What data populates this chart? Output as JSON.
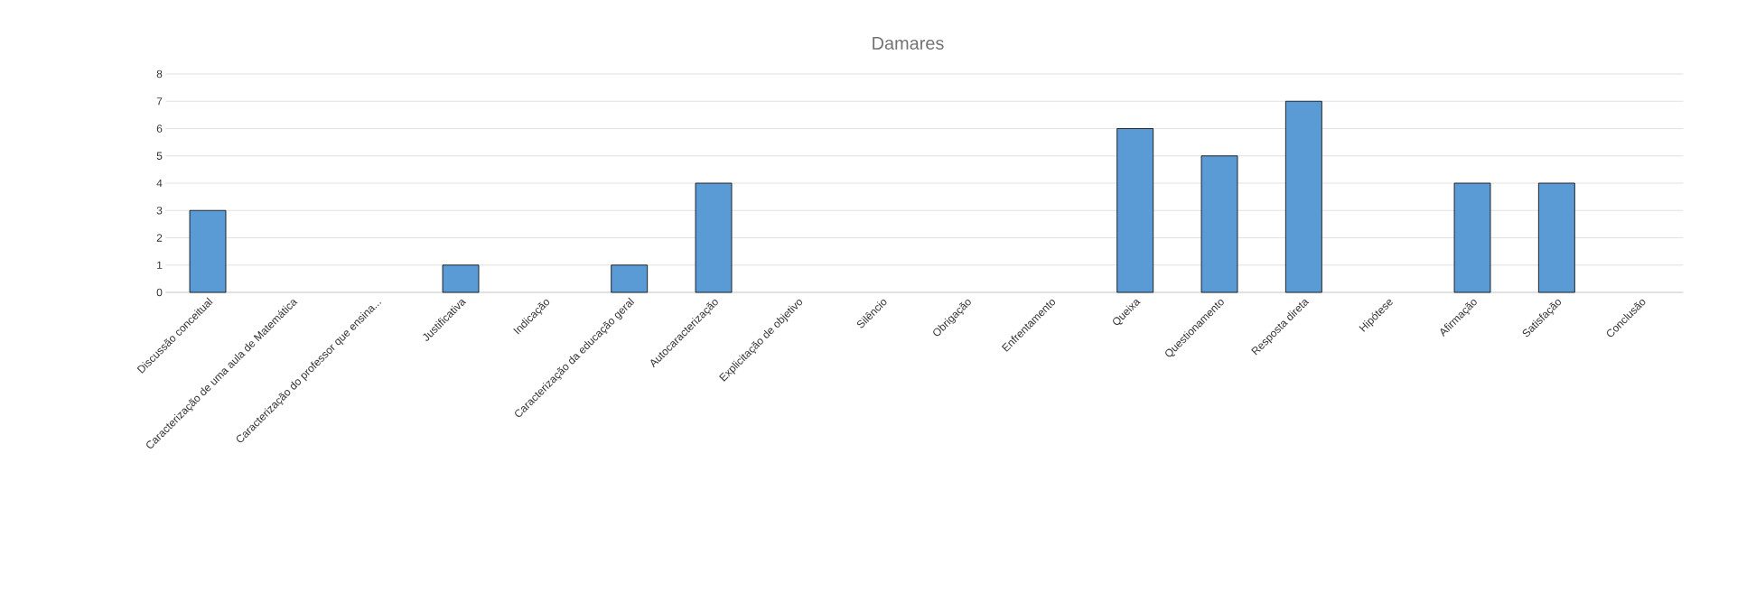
{
  "chart_data": {
    "type": "bar",
    "title": "Damares",
    "categories": [
      "Discussão conceitual",
      "Caracterização de uma aula de Matemática",
      "Caracterização do professor que ensina...",
      "Justificativa",
      "Indicação",
      "Caracterização da educação geral",
      "Autocaracterização",
      "Explicitação de objetivo",
      "Silêncio",
      "Obrigação",
      "Enfrentamento",
      "Queixa",
      "Questionamento",
      "Resposta direta",
      "Hipótese",
      "Afirmação",
      "Satisfação",
      "Conclusão"
    ],
    "values": [
      3,
      0,
      0,
      1,
      0,
      1,
      4,
      0,
      0,
      0,
      0,
      6,
      5,
      7,
      0,
      4,
      4,
      0
    ],
    "color": "#5b9bd5",
    "ylim": [
      0,
      8
    ],
    "yticks": [
      0,
      1,
      2,
      3,
      4,
      5,
      6,
      7,
      8
    ],
    "grid": "y"
  }
}
